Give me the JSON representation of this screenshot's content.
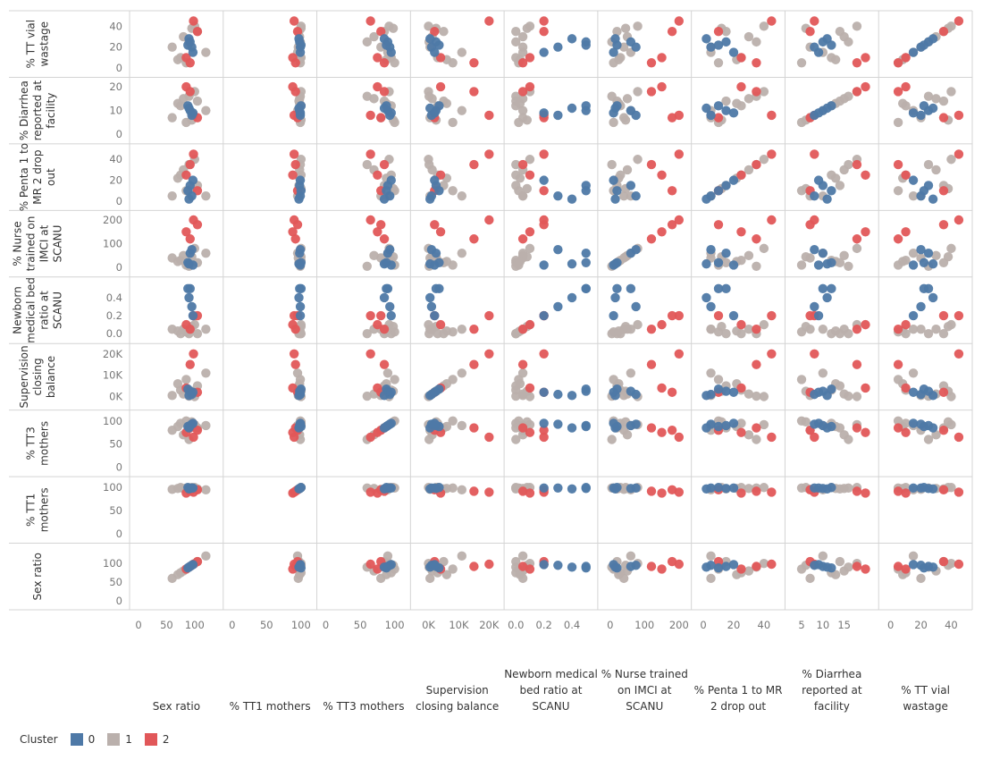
{
  "chart_data": {
    "type": "scatter",
    "title": "",
    "legend": {
      "title": "Cluster",
      "position": "bottom-left",
      "items": [
        {
          "label": "0",
          "color": "#4E79A7"
        },
        {
          "label": "1",
          "color": "#BAB0AC"
        },
        {
          "label": "2",
          "color": "#E15759"
        }
      ]
    },
    "columns": [
      {
        "key": "sex",
        "label": "Sex ratio",
        "range": [
          0,
          135
        ],
        "ticks": [
          {
            "v": 0,
            "t": "0"
          },
          {
            "v": 50,
            "t": "50"
          },
          {
            "v": 100,
            "t": "100"
          }
        ]
      },
      {
        "key": "tt1",
        "label": "% TT1 mothers",
        "range": [
          0,
          110
        ],
        "ticks": [
          {
            "v": 0,
            "t": "0"
          },
          {
            "v": 50,
            "t": "50"
          },
          {
            "v": 100,
            "t": "100"
          }
        ]
      },
      {
        "key": "tt3",
        "label": "% TT3 mothers",
        "range": [
          0,
          110
        ],
        "ticks": [
          {
            "v": 0,
            "t": "0"
          },
          {
            "v": 50,
            "t": "50"
          },
          {
            "v": 100,
            "t": "100"
          }
        ]
      },
      {
        "key": "sup",
        "label": "Supervision closing balance",
        "range": [
          -3000,
          22000
        ],
        "ticks": [
          {
            "v": 0,
            "t": "0K"
          },
          {
            "v": 10000,
            "t": "10K"
          },
          {
            "v": 20000,
            "t": "20K"
          }
        ]
      },
      {
        "key": "bed",
        "label": "Newborn medical bed ratio at SCANU",
        "range": [
          -0.02,
          0.52
        ],
        "ticks": [
          {
            "v": 0,
            "t": "0.0"
          },
          {
            "v": 0.2,
            "t": "0.2"
          },
          {
            "v": 0.4,
            "t": "0.4"
          }
        ]
      },
      {
        "key": "nurse",
        "label": "% Nurse trained on IMCI at SCANU",
        "range": [
          -10,
          210
        ],
        "ticks": [
          {
            "v": 0,
            "t": "0"
          },
          {
            "v": 100,
            "t": "100"
          },
          {
            "v": 200,
            "t": "200"
          }
        ]
      },
      {
        "key": "penta",
        "label": "% Penta 1 to MR 2 drop out",
        "range": [
          -2,
          48
        ],
        "ticks": [
          {
            "v": 0,
            "t": "0"
          },
          {
            "v": 20,
            "t": "20"
          },
          {
            "v": 40,
            "t": "40"
          }
        ]
      },
      {
        "key": "diar",
        "label": "% Diarrhea reported at facility",
        "range": [
          3.2,
          21
        ],
        "ticks": [
          {
            "v": 5,
            "t": "5"
          },
          {
            "v": 10,
            "t": "10"
          },
          {
            "v": 15,
            "t": "15"
          }
        ]
      },
      {
        "key": "tt",
        "label": "% TT vial wastage",
        "range": [
          -2,
          48
        ],
        "ticks": [
          {
            "v": 0,
            "t": "0"
          },
          {
            "v": 20,
            "t": "20"
          },
          {
            "v": 40,
            "t": "40"
          }
        ]
      }
    ],
    "rows": [
      {
        "key": "tt",
        "label": "% TT vial wastage",
        "range": [
          -2,
          48
        ],
        "ticks": [
          {
            "v": 0,
            "t": "0"
          },
          {
            "v": 20,
            "t": "20"
          },
          {
            "v": 40,
            "t": "40"
          }
        ]
      },
      {
        "key": "diar",
        "label": "% Diarrhea reported at facility",
        "range": [
          -1,
          21
        ],
        "ticks": [
          {
            "v": 0,
            "t": "0"
          },
          {
            "v": 10,
            "t": "10"
          },
          {
            "v": 20,
            "t": "20"
          }
        ]
      },
      {
        "key": "penta",
        "label": "% Penta 1 to MR 2 drop out",
        "range": [
          -2,
          48
        ],
        "ticks": [
          {
            "v": 0,
            "t": "0"
          },
          {
            "v": 20,
            "t": "20"
          },
          {
            "v": 40,
            "t": "40"
          }
        ]
      },
      {
        "key": "nurse",
        "label": "% Nurse trained on IMCI at SCANU",
        "range": [
          -10,
          210
        ],
        "ticks": [
          {
            "v": 0,
            "t": "0"
          },
          {
            "v": 100,
            "t": "100"
          },
          {
            "v": 200,
            "t": "200"
          }
        ]
      },
      {
        "key": "bed",
        "label": "Newborn medical bed ratio at SCANU",
        "range": [
          -0.03,
          0.55
        ],
        "ticks": [
          {
            "v": 0,
            "t": "0.0"
          },
          {
            "v": 0.2,
            "t": "0.2"
          },
          {
            "v": 0.4,
            "t": "0.4"
          }
        ]
      },
      {
        "key": "sup",
        "label": "Supervision closing balance",
        "range": [
          -3000,
          21500
        ],
        "ticks": [
          {
            "v": 0,
            "t": "0K"
          },
          {
            "v": 10000,
            "t": "10K"
          },
          {
            "v": 20000,
            "t": "20K"
          }
        ]
      },
      {
        "key": "tt3",
        "label": "% TT3 mothers",
        "range": [
          -5,
          108
        ],
        "ticks": [
          {
            "v": 0,
            "t": "0"
          },
          {
            "v": 50,
            "t": "50"
          },
          {
            "v": 100,
            "t": "100"
          }
        ]
      },
      {
        "key": "tt1",
        "label": "% TT1 mothers",
        "range": [
          -5,
          108
        ],
        "ticks": [
          {
            "v": 0,
            "t": "0"
          },
          {
            "v": 50,
            "t": "50"
          },
          {
            "v": 100,
            "t": "100"
          }
        ]
      },
      {
        "key": "sex",
        "label": "Sex ratio",
        "range": [
          -5,
          135
        ],
        "ticks": [
          {
            "v": 0,
            "t": "0"
          },
          {
            "v": 50,
            "t": "50"
          },
          {
            "v": 100,
            "t": "100"
          }
        ]
      }
    ],
    "records": [
      {
        "cluster": 0,
        "sex": 92,
        "tt1": 98,
        "tt3": 90,
        "sup": 2500,
        "bed": 0.5,
        "nurse": 60,
        "penta": 15,
        "diar": 10,
        "tt": 25
      },
      {
        "cluster": 0,
        "sex": 95,
        "tt1": 99,
        "tt3": 93,
        "sup": 1000,
        "bed": 0.3,
        "nurse": 75,
        "penta": 5,
        "diar": 8,
        "tt": 20
      },
      {
        "cluster": 0,
        "sex": 88,
        "tt1": 100,
        "tt3": 88,
        "sup": 3500,
        "bed": 0.5,
        "nurse": 20,
        "penta": 10,
        "diar": 12,
        "tt": 22
      },
      {
        "cluster": 0,
        "sex": 90,
        "tt1": 97,
        "tt3": 85,
        "sup": 500,
        "bed": 0.4,
        "nurse": 15,
        "penta": 2,
        "diar": 11,
        "tt": 28
      },
      {
        "cluster": 0,
        "sex": 97,
        "tt1": 99,
        "tt3": 95,
        "sup": 2000,
        "bed": 0.2,
        "nurse": 10,
        "penta": 20,
        "diar": 9,
        "tt": 15
      },
      {
        "cluster": 1,
        "sex": 60,
        "tt1": 96,
        "tt3": 80,
        "sup": 500,
        "bed": 0.05,
        "nurse": 40,
        "penta": 5,
        "diar": 7,
        "tt": 20
      },
      {
        "cluster": 1,
        "sex": 75,
        "tt1": 100,
        "tt3": 95,
        "sup": 3000,
        "bed": 0.0,
        "nurse": 30,
        "penta": 25,
        "diar": 12,
        "tt": 10
      },
      {
        "cluster": 1,
        "sex": 80,
        "tt1": 98,
        "tt3": 70,
        "sup": 1200,
        "bed": 0.05,
        "nurse": 50,
        "penta": 30,
        "diar": 15,
        "tt": 30
      },
      {
        "cluster": 1,
        "sex": 85,
        "tt1": 99,
        "tt3": 100,
        "sup": 8000,
        "bed": 0.02,
        "nurse": 10,
        "penta": 10,
        "diar": 5,
        "tt": 5
      },
      {
        "cluster": 1,
        "sex": 100,
        "tt1": 100,
        "tt3": 92,
        "sup": 0,
        "bed": 0.1,
        "nurse": 80,
        "penta": 40,
        "diar": 18,
        "tt": 40
      },
      {
        "cluster": 1,
        "sex": 105,
        "tt1": 97,
        "tt3": 85,
        "sup": 5000,
        "bed": 0.0,
        "nurse": 20,
        "penta": 15,
        "diar": 14,
        "tt": 35
      },
      {
        "cluster": 1,
        "sex": 120,
        "tt1": 95,
        "tt3": 90,
        "sup": 11000,
        "bed": 0.05,
        "nurse": 60,
        "penta": 5,
        "diar": 10,
        "tt": 15
      },
      {
        "cluster": 1,
        "sex": 90,
        "tt1": 99,
        "tt3": 60,
        "sup": 200,
        "bed": 0.0,
        "nurse": 5,
        "penta": 35,
        "diar": 16,
        "tt": 25
      },
      {
        "cluster": 1,
        "sex": 95,
        "tt1": 100,
        "tt3": 98,
        "sup": 2500,
        "bed": 0.08,
        "nurse": 45,
        "penta": 12,
        "diar": 6,
        "tt": 38
      },
      {
        "cluster": 1,
        "sex": 70,
        "tt1": 98,
        "tt3": 88,
        "sup": 6000,
        "bed": 0.03,
        "nurse": 25,
        "penta": 22,
        "diar": 13,
        "tt": 8
      },
      {
        "cluster": 2,
        "sex": 98,
        "tt1": 90,
        "tt3": 65,
        "sup": 20000,
        "bed": 0.2,
        "nurse": 200,
        "penta": 45,
        "diar": 8,
        "tt": 45
      },
      {
        "cluster": 2,
        "sex": 85,
        "tt1": 88,
        "tt3": 75,
        "sup": 4000,
        "bed": 0.1,
        "nurse": 150,
        "penta": 25,
        "diar": 20,
        "tt": 10
      },
      {
        "cluster": 2,
        "sex": 105,
        "tt1": 95,
        "tt3": 80,
        "sup": 2000,
        "bed": 0.2,
        "nurse": 180,
        "penta": 10,
        "diar": 7,
        "tt": 35
      },
      {
        "cluster": 2,
        "sex": 92,
        "tt1": 92,
        "tt3": 85,
        "sup": 15000,
        "bed": 0.05,
        "nurse": 120,
        "penta": 35,
        "diar": 18,
        "tt": 5
      }
    ]
  }
}
